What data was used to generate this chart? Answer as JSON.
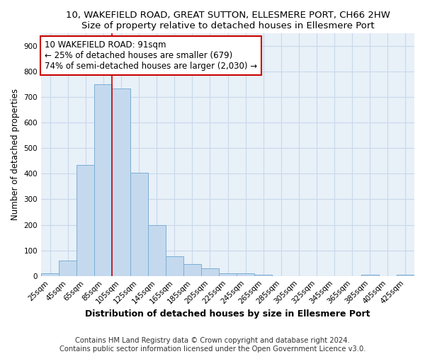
{
  "title": "10, WAKEFIELD ROAD, GREAT SUTTON, ELLESMERE PORT, CH66 2HW",
  "subtitle": "Size of property relative to detached houses in Ellesmere Port",
  "xlabel": "Distribution of detached houses by size in Ellesmere Port",
  "ylabel": "Number of detached properties",
  "bar_color": "#c5d9ee",
  "bar_edge_color": "#7aafd4",
  "grid_color": "#c8d8ea",
  "bg_color": "#e8f0f8",
  "categories": [
    "25sqm",
    "45sqm",
    "65sqm",
    "85sqm",
    "105sqm",
    "125sqm",
    "145sqm",
    "165sqm",
    "185sqm",
    "205sqm",
    "225sqm",
    "245sqm",
    "265sqm",
    "285sqm",
    "305sqm",
    "325sqm",
    "345sqm",
    "365sqm",
    "385sqm",
    "405sqm",
    "425sqm"
  ],
  "values": [
    10,
    60,
    435,
    750,
    735,
    405,
    200,
    78,
    45,
    30,
    10,
    10,
    5,
    0,
    0,
    0,
    0,
    0,
    5,
    0,
    5
  ],
  "annotation_text": "10 WAKEFIELD ROAD: 91sqm\n← 25% of detached houses are smaller (679)\n74% of semi-detached houses are larger (2,030) →",
  "annotation_box_color": "#ffffff",
  "annotation_box_edge": "#cc0000",
  "property_line_x": 3.5,
  "ylim": [
    0,
    950
  ],
  "yticks": [
    0,
    100,
    200,
    300,
    400,
    500,
    600,
    700,
    800,
    900
  ],
  "footer_text": "Contains HM Land Registry data © Crown copyright and database right 2024.\nContains public sector information licensed under the Open Government Licence v3.0.",
  "title_fontsize": 9.5,
  "xlabel_fontsize": 9,
  "ylabel_fontsize": 8.5,
  "tick_fontsize": 7.5,
  "annotation_fontsize": 8.5,
  "footer_fontsize": 7.2
}
